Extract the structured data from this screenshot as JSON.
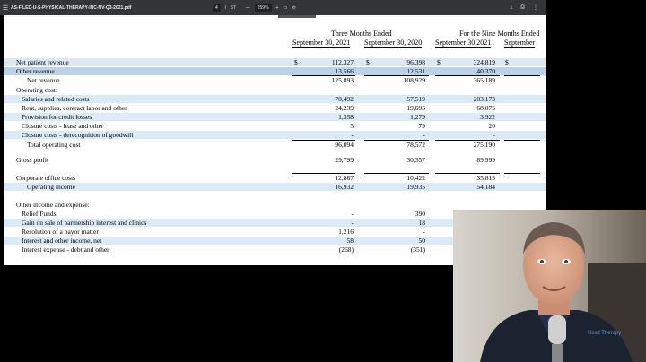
{
  "toolbar": {
    "menu_icon": "menu-icon",
    "filename": "AS-FILED-U-S-PHYSICAL-THERAPY-INC-NV-Q3-2021.pdf",
    "page_current": "4",
    "page_sep": "/",
    "page_total": "57",
    "zoom_minus": "—",
    "zoom": "259%",
    "zoom_plus": "+",
    "icons": [
      "fit-page-icon",
      "rotate-icon",
      "download-icon",
      "print-icon",
      "more-icon"
    ]
  },
  "table": {
    "header_three": "Three Months Ended",
    "header_nine": "For the Nine Months Ended",
    "col_sep30_2021": "September 30, 2021",
    "col_sep30_2020": "September 30, 2020",
    "col_sep30_2021_nine": "September 30,2021",
    "col_sep30_nine_b": "September",
    "rows": [
      {
        "label": "Net patient revenue",
        "a": "112,327",
        "b": "96,398",
        "c": "324,819",
        "band": true,
        "dollar": true
      },
      {
        "label": "Other revenue",
        "a": "13,566",
        "b": "12,531",
        "c": "40,370",
        "band": true,
        "highlight": true
      },
      {
        "label": "Net revenue",
        "a": "125,893",
        "b": "108,929",
        "c": "365,189",
        "band": false,
        "indent": true
      },
      {
        "label": "Operating cost:",
        "a": "",
        "b": "",
        "c": "",
        "band": false
      },
      {
        "label": "Salaries and related costs",
        "a": "70,492",
        "b": "57,519",
        "c": "203,173",
        "band": true,
        "indent2": true
      },
      {
        "label": "Rent, supplies, contract labor and other",
        "a": "24,239",
        "b": "19,695",
        "c": "68,075",
        "band": false,
        "indent2": true
      },
      {
        "label": "Provision for credit losses",
        "a": "1,358",
        "b": "1,279",
        "c": "3,922",
        "band": true,
        "indent2": true
      },
      {
        "label": "Closure costs - lease and other",
        "a": "5",
        "b": "79",
        "c": "20",
        "band": false,
        "indent2": true
      },
      {
        "label": "Closure costs - derecognition of goodwill",
        "a": "-",
        "b": "-",
        "c": "-",
        "band": true,
        "indent2": true
      },
      {
        "label": "Total operating cost",
        "a": "96,094",
        "b": "78,572",
        "c": "275,190",
        "band": false,
        "indent": true
      },
      {
        "label": "Gross profit",
        "a": "29,799",
        "b": "30,357",
        "c": "89,999",
        "band": false
      },
      {
        "label": "Corporate office costs",
        "a": "12,867",
        "b": "10,422",
        "c": "35,815",
        "band": false
      },
      {
        "label": "Operating income",
        "a": "16,932",
        "b": "19,935",
        "c": "54,184",
        "band": true,
        "indent": true
      },
      {
        "label": "Other income and expense:",
        "a": "",
        "b": "",
        "c": "",
        "band": false
      },
      {
        "label": "Relief Funds",
        "a": "-",
        "b": "390",
        "c": "",
        "band": false,
        "indent2": true
      },
      {
        "label": "Gain on sale of partnership interest and clinics",
        "a": "-",
        "b": "18",
        "c": "",
        "band": true,
        "indent2": true
      },
      {
        "label": "Resolution of a payor matter",
        "a": "1,216",
        "b": "-",
        "c": "",
        "band": false,
        "indent2": true
      },
      {
        "label": "Interest and other income, net",
        "a": "58",
        "b": "50",
        "c": "",
        "band": true,
        "indent2": true
      },
      {
        "label": "Interest expense - debt and other",
        "a": "(268)",
        "b": "(351)",
        "c": "",
        "band": false,
        "indent2": true
      }
    ],
    "dollar_sign": "$"
  },
  "video": {
    "logo_text": "Ussd Therapy"
  }
}
